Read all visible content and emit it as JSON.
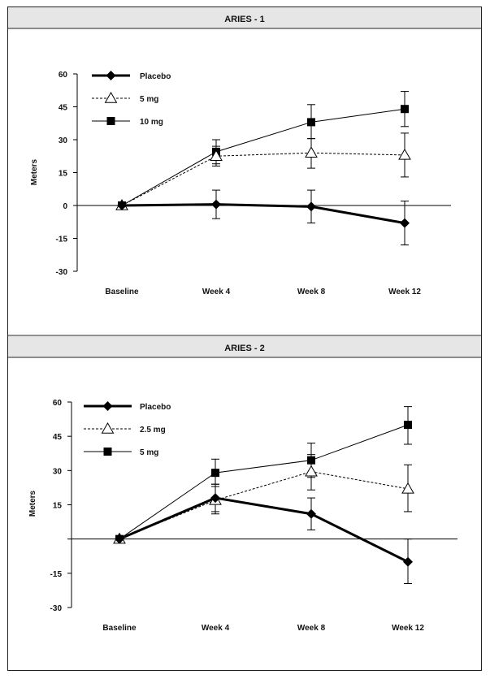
{
  "chart_data": [
    {
      "type": "line",
      "title": "ARIES - 1",
      "xlabel": "",
      "ylabel": "Meters",
      "ylim": [
        -30,
        60
      ],
      "yticks": [
        "60",
        "45",
        "30",
        "15",
        "0",
        "-15",
        "-30"
      ],
      "categories": [
        "Baseline",
        "Week 4",
        "Week 8",
        "Week 12"
      ],
      "legend_position": "top-left",
      "grid": false,
      "series": [
        {
          "name": "Placebo",
          "style": "solid-thick",
          "marker": "diamond",
          "values": [
            0,
            0.5,
            -0.5,
            -8
          ],
          "err_low": [
            0,
            -6,
            -8,
            -18
          ],
          "err_high": [
            0,
            7,
            7,
            2
          ]
        },
        {
          "name": "5 mg",
          "style": "dashed",
          "marker": "triangle-open",
          "values": [
            0,
            22.5,
            24,
            23
          ],
          "err_low": [
            0,
            18,
            17,
            13
          ],
          "err_high": [
            0,
            27,
            30.5,
            33
          ]
        },
        {
          "name": "10 mg",
          "style": "solid",
          "marker": "square",
          "values": [
            0,
            24.5,
            38,
            44
          ],
          "err_low": [
            0,
            19,
            30.5,
            36
          ],
          "err_high": [
            0,
            30,
            46,
            52
          ]
        }
      ]
    },
    {
      "type": "line",
      "title": "ARIES - 2",
      "xlabel": "",
      "ylabel": "Meters",
      "ylim": [
        -30,
        60
      ],
      "yticks": [
        "60",
        "45",
        "30",
        "15",
        "",
        "-15",
        "-30"
      ],
      "categories": [
        "Baseline",
        "Week 4",
        "Week 8",
        "Week 12"
      ],
      "legend_position": "top-left",
      "grid": false,
      "series": [
        {
          "name": "Placebo",
          "style": "solid-thick",
          "marker": "diamond",
          "values": [
            0,
            18,
            11,
            -10
          ],
          "err_low": [
            0,
            12,
            4,
            -19.5
          ],
          "err_high": [
            0,
            24,
            18,
            0
          ]
        },
        {
          "name": "2.5 mg",
          "style": "dashed",
          "marker": "triangle-open",
          "values": [
            0,
            17,
            29.5,
            22
          ],
          "err_low": [
            0,
            11,
            21.5,
            12
          ],
          "err_high": [
            0,
            23,
            37,
            32.5
          ]
        },
        {
          "name": "5 mg",
          "style": "solid",
          "marker": "square",
          "values": [
            0,
            29,
            34.5,
            50
          ],
          "err_low": [
            0,
            24,
            27,
            41.5
          ],
          "err_high": [
            0,
            35,
            42,
            58
          ]
        }
      ]
    }
  ]
}
